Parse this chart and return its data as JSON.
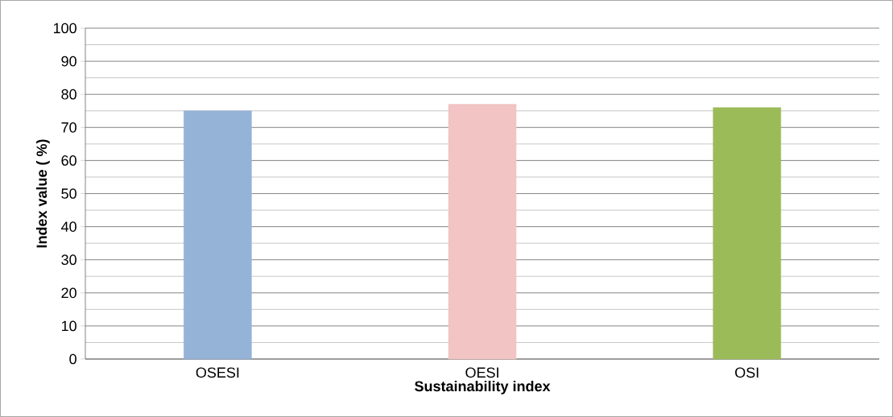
{
  "chart_data": {
    "type": "bar",
    "xlabel": "Sustainability index",
    "ylabel": "Index value ( %)",
    "categories": [
      "OSESI",
      "OESI",
      "OSI"
    ],
    "values": [
      75,
      77,
      76
    ],
    "colors": [
      "#95b3d7",
      "#f2c4c4",
      "#9bbb59"
    ],
    "ylim": [
      0,
      100
    ],
    "yticks": [
      0,
      10,
      20,
      30,
      40,
      50,
      60,
      70,
      80,
      90,
      100
    ],
    "grid": "y"
  }
}
